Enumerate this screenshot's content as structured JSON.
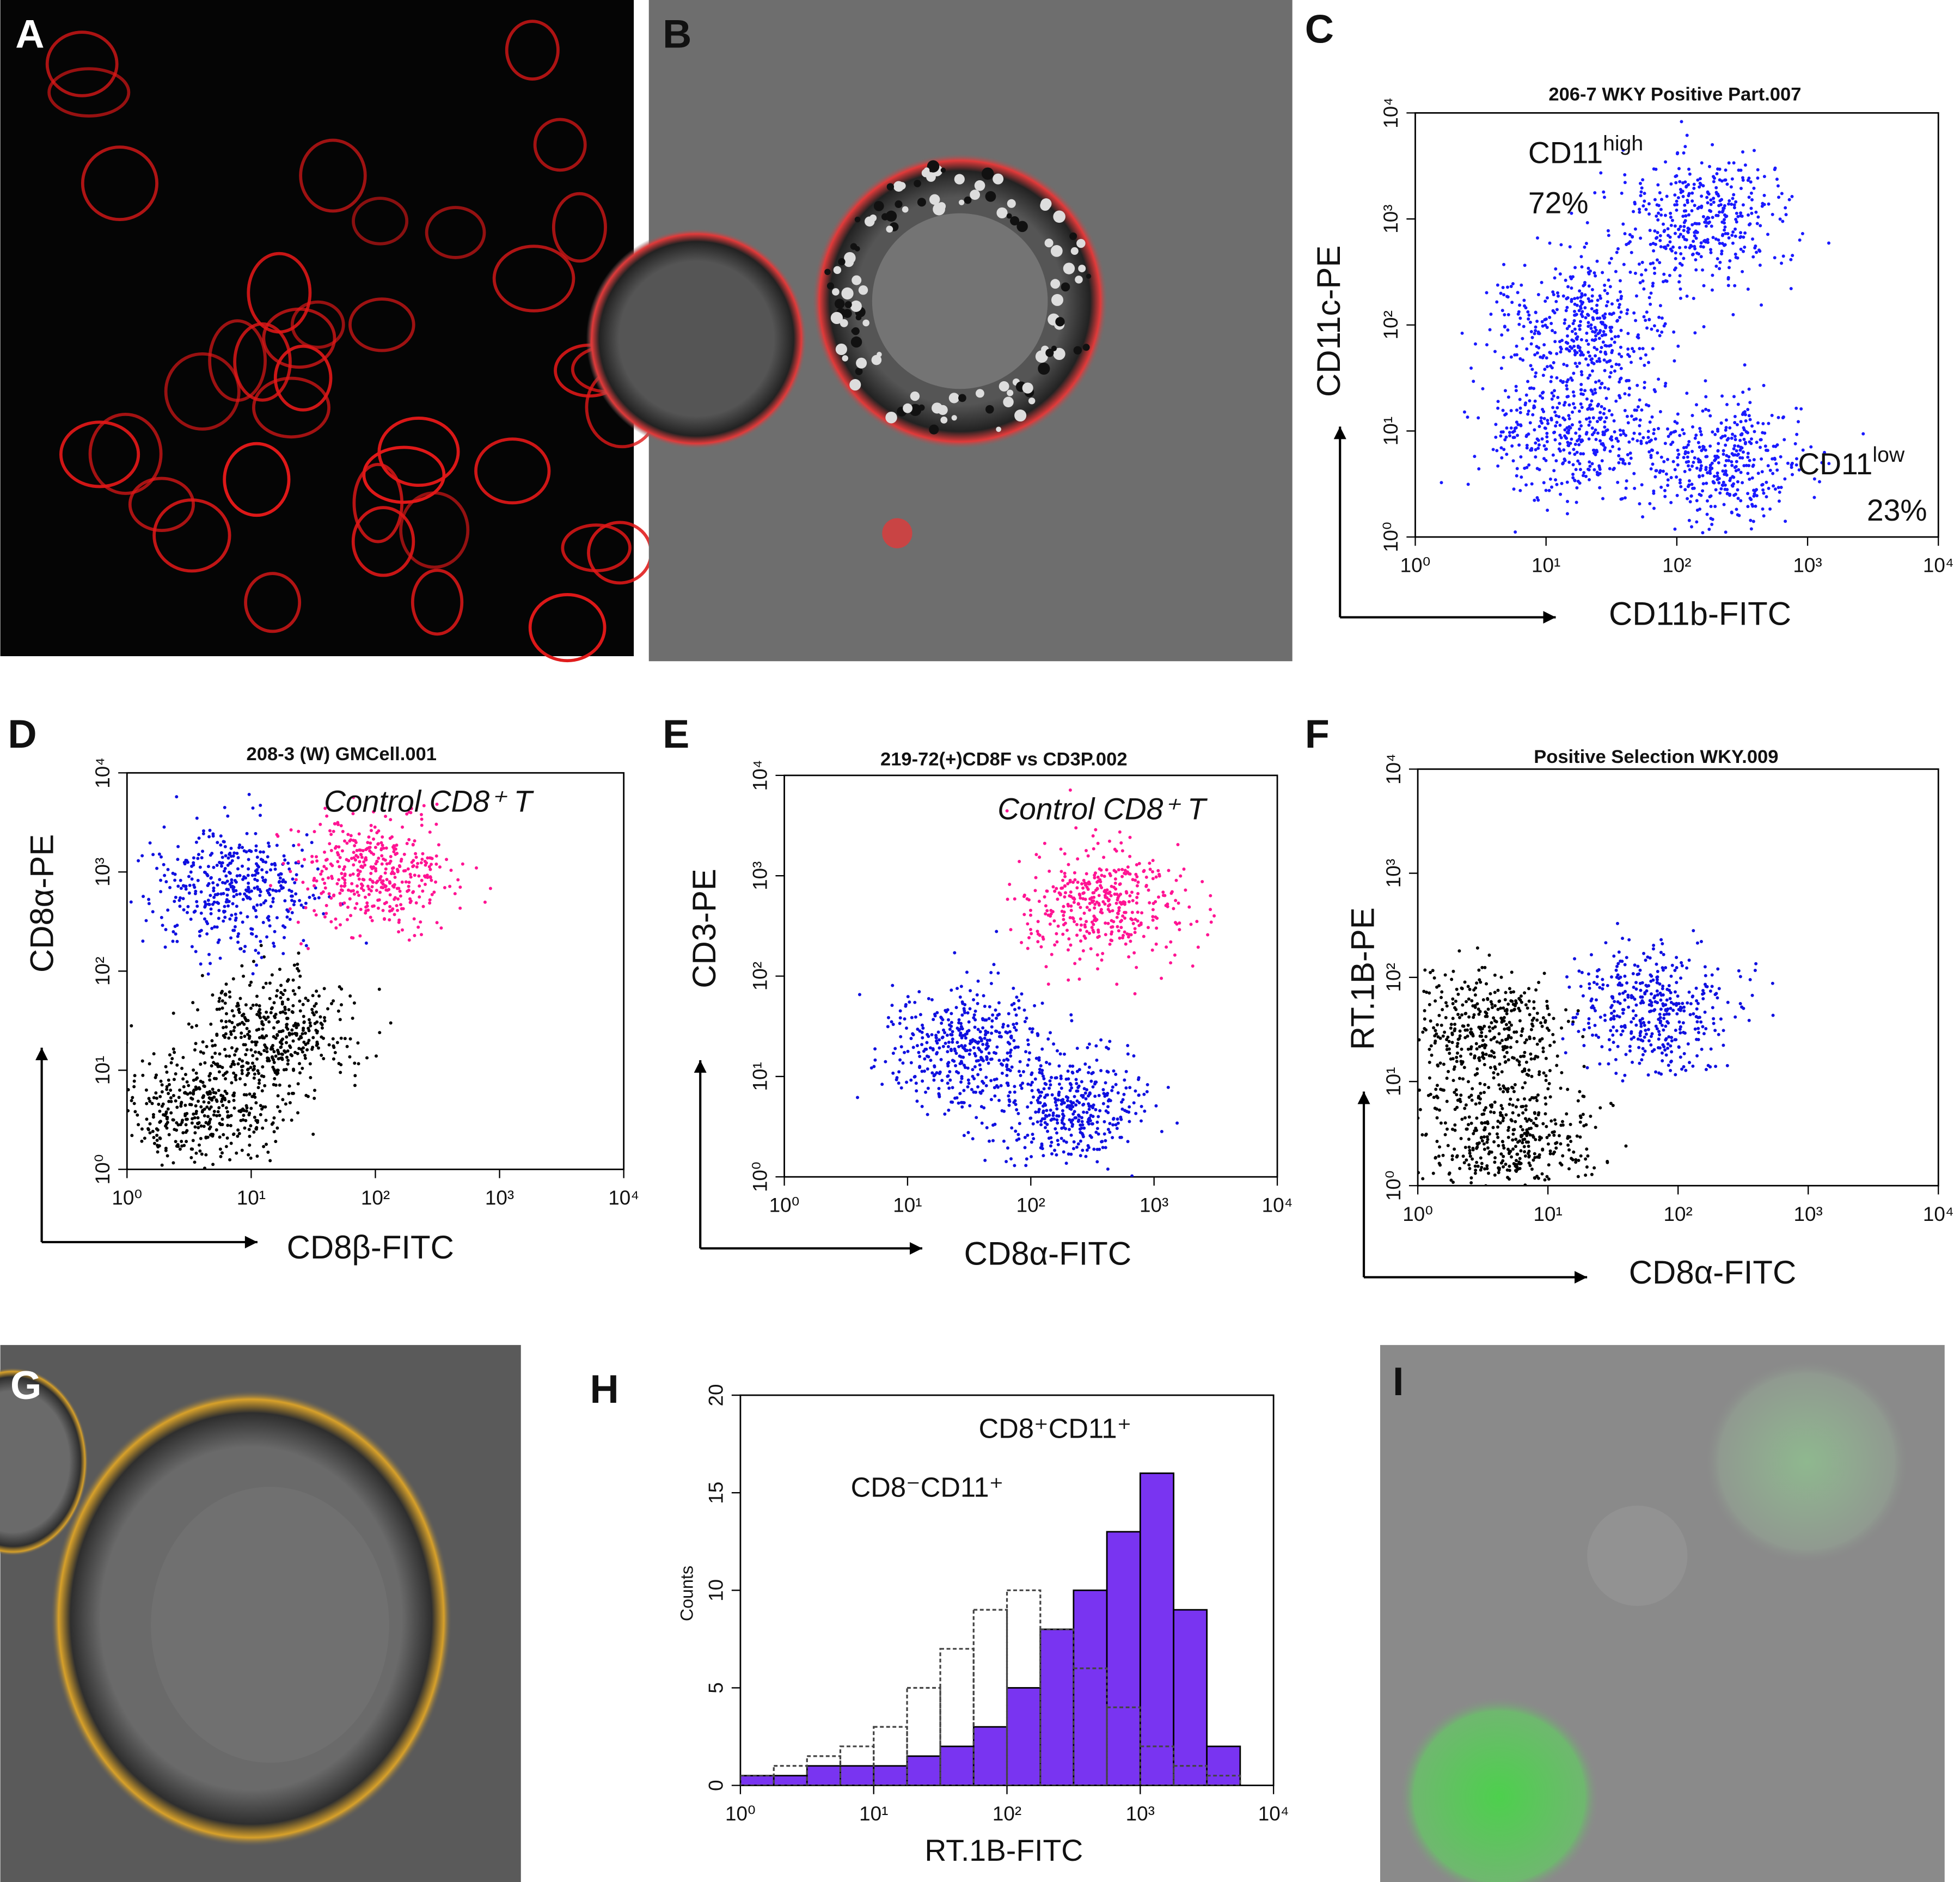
{
  "panel_labels": [
    "A",
    "B",
    "C",
    "D",
    "E",
    "F",
    "G",
    "H",
    "I"
  ],
  "chart_data": [
    {
      "type": "scatter",
      "title": "206-7 WKY Positive Part.007",
      "xlabel": "CD11b-FITC",
      "ylabel": "CD11c-PE",
      "log_scale": true,
      "xlim": [
        1,
        10000
      ],
      "ylim": [
        1,
        10000
      ],
      "xticks": [
        {
          "value": 1,
          "label": "10⁰"
        },
        {
          "value": 10,
          "label": "10¹"
        },
        {
          "value": 100,
          "label": "10²"
        },
        {
          "value": 1000,
          "label": "10³"
        },
        {
          "value": 10000,
          "label": "10⁴"
        }
      ],
      "yticks": [
        {
          "value": 1,
          "label": "10⁰"
        },
        {
          "value": 10,
          "label": "10¹"
        },
        {
          "value": 100,
          "label": "10²"
        },
        {
          "value": 1000,
          "label": "10³"
        },
        {
          "value": 10000,
          "label": "10⁴"
        }
      ],
      "annotations": [
        {
          "text": "CD11",
          "sup": "high"
        },
        {
          "text": "72%"
        },
        {
          "text": "CD11",
          "sup": "low"
        },
        {
          "text": "23%"
        }
      ],
      "populations": [
        {
          "color": "#1a1aff",
          "x": 20,
          "y": 100
        },
        {
          "color": "#1a1aff",
          "x": 150,
          "y": 1000
        },
        {
          "color": "#1a1aff",
          "x": 15,
          "y": 10
        },
        {
          "color": "#1a1aff",
          "x": 200,
          "y": 5
        }
      ]
    },
    {
      "type": "scatter",
      "title": "208-3 (W) GMCell.001",
      "xlabel": "CD8β-FITC",
      "ylabel": "CD8α-PE",
      "log_scale": true,
      "xlim": [
        1,
        10000
      ],
      "ylim": [
        1,
        10000
      ],
      "xticks": [
        {
          "value": 1,
          "label": "10⁰"
        },
        {
          "value": 10,
          "label": "10¹"
        },
        {
          "value": 100,
          "label": "10²"
        },
        {
          "value": 1000,
          "label": "10³"
        },
        {
          "value": 10000,
          "label": "10⁴"
        }
      ],
      "yticks": [
        {
          "value": 1,
          "label": "10⁰"
        },
        {
          "value": 10,
          "label": "10¹"
        },
        {
          "value": 100,
          "label": "10²"
        },
        {
          "value": 1000,
          "label": "10³"
        },
        {
          "value": 10000,
          "label": "10⁴"
        }
      ],
      "annotations": [
        {
          "text": "Control CD8⁺ T"
        }
      ],
      "populations": [
        {
          "color": "#000000",
          "x": 4,
          "y": 4
        },
        {
          "color": "#000000",
          "x": 15,
          "y": 25
        },
        {
          "color": "#1010e0",
          "x": 7,
          "y": 700
        },
        {
          "color": "#ff1493",
          "x": 100,
          "y": 1000
        }
      ]
    },
    {
      "type": "scatter",
      "title": "219-72(+)CD8F vs CD3P.002",
      "xlabel": "CD8α-FITC",
      "ylabel": "CD3-PE",
      "log_scale": true,
      "xlim": [
        1,
        10000
      ],
      "ylim": [
        1,
        10000
      ],
      "xticks": [
        {
          "value": 1,
          "label": "10⁰"
        },
        {
          "value": 10,
          "label": "10¹"
        },
        {
          "value": 100,
          "label": "10²"
        },
        {
          "value": 1000,
          "label": "10³"
        },
        {
          "value": 10000,
          "label": "10⁴"
        }
      ],
      "yticks": [
        {
          "value": 1,
          "label": "10⁰"
        },
        {
          "value": 10,
          "label": "10¹"
        },
        {
          "value": 100,
          "label": "10²"
        },
        {
          "value": 1000,
          "label": "10³"
        },
        {
          "value": 10000,
          "label": "10⁴"
        }
      ],
      "annotations": [
        {
          "text": "Control CD8⁺ T"
        }
      ],
      "populations": [
        {
          "color": "#1010e0",
          "x": 30,
          "y": 20
        },
        {
          "color": "#1010e0",
          "x": 200,
          "y": 5
        },
        {
          "color": "#ff1493",
          "x": 400,
          "y": 500
        }
      ]
    },
    {
      "type": "scatter",
      "title": "Positive Selection WKY.009",
      "xlabel": "CD8α-FITC",
      "ylabel": "RT.1B-PE",
      "log_scale": true,
      "xlim": [
        1,
        10000
      ],
      "ylim": [
        1,
        10000
      ],
      "xticks": [
        {
          "value": 1,
          "label": "10⁰"
        },
        {
          "value": 10,
          "label": "10¹"
        },
        {
          "value": 100,
          "label": "10²"
        },
        {
          "value": 1000,
          "label": "10³"
        },
        {
          "value": 10000,
          "label": "10⁴"
        }
      ],
      "yticks": [
        {
          "value": 1,
          "label": "10⁰"
        },
        {
          "value": 10,
          "label": "10¹"
        },
        {
          "value": 100,
          "label": "10²"
        },
        {
          "value": 1000,
          "label": "10³"
        },
        {
          "value": 10000,
          "label": "10⁴"
        }
      ],
      "populations": [
        {
          "color": "#000000",
          "x": 3,
          "y": 30
        },
        {
          "color": "#000000",
          "x": 5,
          "y": 3
        },
        {
          "color": "#1010e0",
          "x": 60,
          "y": 50
        }
      ]
    },
    {
      "type": "histogram",
      "xlabel": "RT.1B-FITC",
      "ylabel": "Counts",
      "log_scale": true,
      "xlim": [
        1,
        10000
      ],
      "ylim": [
        0,
        20
      ],
      "xticks": [
        {
          "value": 1,
          "label": "10⁰"
        },
        {
          "value": 10,
          "label": "10¹"
        },
        {
          "value": 100,
          "label": "10²"
        },
        {
          "value": 1000,
          "label": "10³"
        },
        {
          "value": 10000,
          "label": "10⁴"
        }
      ],
      "yticks": [
        0,
        5,
        10,
        15,
        20
      ],
      "bins": [
        1,
        1.78,
        3.16,
        5.62,
        10,
        17.8,
        31.6,
        56.2,
        100,
        178,
        316,
        562,
        1000,
        1780,
        3160,
        5620,
        10000
      ],
      "series": [
        {
          "name": "CD8⁺CD11⁺",
          "color": "#6a1ef0",
          "values": [
            0.5,
            0.5,
            1,
            1,
            1,
            1.5,
            2,
            3,
            5,
            8,
            10,
            13,
            16,
            9,
            2,
            0
          ]
        },
        {
          "name": "CD8⁻CD11⁺",
          "color": "#444444",
          "values": [
            0.5,
            1,
            1.5,
            2,
            3,
            5,
            7,
            9,
            10,
            8,
            6,
            4,
            2,
            1,
            0.5,
            0
          ]
        }
      ]
    }
  ]
}
